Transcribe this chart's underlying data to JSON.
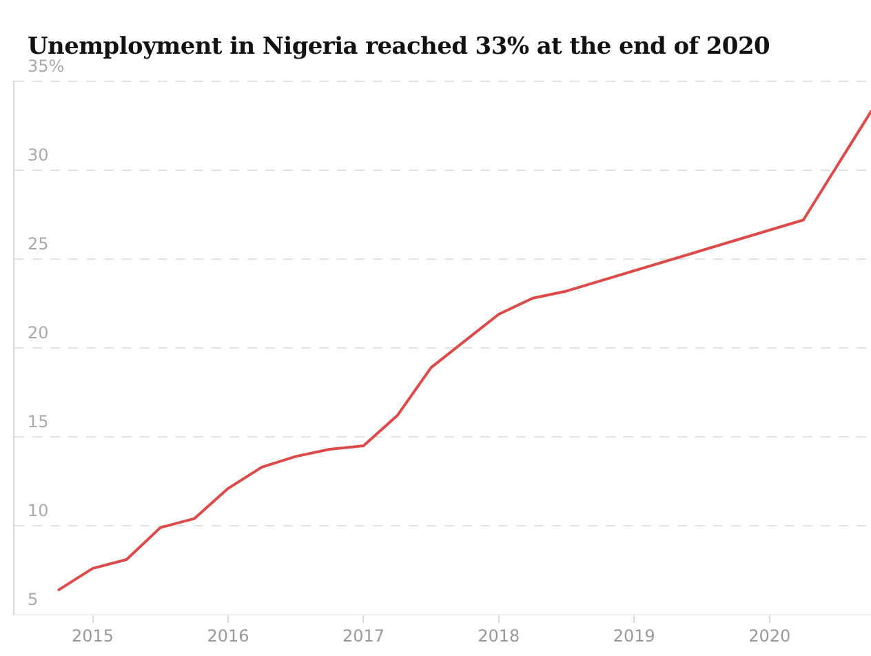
{
  "chart_data": {
    "type": "line",
    "title": "Unemployment in Nigeria reached 33% at the end of 2020",
    "x": [
      "2014-10",
      "2015-01",
      "2015-04",
      "2015-07",
      "2015-10",
      "2016-01",
      "2016-04",
      "2016-07",
      "2016-10",
      "2017-01",
      "2017-04",
      "2017-07",
      "2017-10",
      "2018-01",
      "2018-04",
      "2018-07",
      "2020-04",
      "2020-10"
    ],
    "series": [
      {
        "color": "#dc4a4a",
        "values": [
          6.4,
          7.6,
          8.1,
          9.9,
          10.4,
          12.1,
          13.3,
          13.9,
          14.3,
          14.5,
          16.2,
          18.9,
          20.4,
          21.9,
          22.8,
          23.2,
          27.2,
          33.3
        ]
      }
    ],
    "xlim": [
      "2014-06",
      "2020-10"
    ],
    "xticks": [
      "2015",
      "2016",
      "2017",
      "2018",
      "2019",
      "2020"
    ],
    "ylim": [
      5,
      35
    ],
    "yticks": [
      5,
      10,
      15,
      20,
      25,
      30,
      {
        "value": 35,
        "label": "35%"
      }
    ],
    "grid": "y",
    "legend": false,
    "marker": "none",
    "line_style": "solid"
  }
}
